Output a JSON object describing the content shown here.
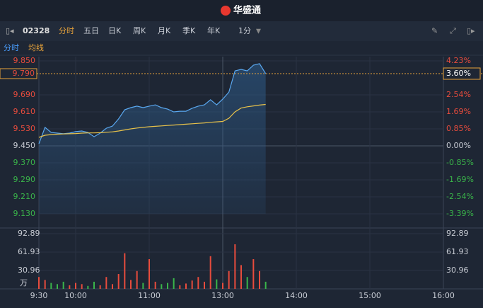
{
  "header": {
    "logo": "华盛通"
  },
  "toolbar": {
    "code": "02328",
    "tabs": [
      "分时",
      "五日",
      "日K",
      "周K",
      "月K",
      "季K",
      "年K"
    ],
    "selected": "分时",
    "period": "1分"
  },
  "subtabs": [
    "分时",
    "均线"
  ],
  "chart_data": {
    "type": "line",
    "x": [
      "9:30",
      "9:35",
      "9:40",
      "9:45",
      "9:50",
      "9:55",
      "10:00",
      "10:05",
      "10:10",
      "10:15",
      "10:20",
      "10:25",
      "10:30",
      "10:35",
      "10:40",
      "10:45",
      "10:50",
      "10:55",
      "11:00",
      "11:05",
      "11:10",
      "11:15",
      "11:20",
      "11:25",
      "11:30",
      "11:35",
      "11:40",
      "11:45",
      "11:50",
      "11:55",
      "12:00",
      "13:05",
      "13:10",
      "13:15",
      "13:20",
      "13:25",
      "13:30",
      "13:35"
    ],
    "series": [
      {
        "color": "#5aa8f0",
        "values": [
          9.46,
          9.537,
          9.513,
          9.51,
          9.507,
          9.51,
          9.517,
          9.52,
          9.513,
          9.493,
          9.51,
          9.533,
          9.543,
          9.577,
          9.62,
          9.63,
          9.637,
          9.63,
          9.637,
          9.643,
          9.63,
          9.623,
          9.61,
          9.613,
          9.613,
          9.627,
          9.637,
          9.643,
          9.667,
          9.643,
          9.67,
          9.703,
          9.803,
          9.81,
          9.803,
          9.83,
          9.837,
          9.79
        ]
      },
      {
        "color": "#e8c24a",
        "values": [
          9.49,
          9.5,
          9.503,
          9.505,
          9.506,
          9.507,
          9.508,
          9.51,
          9.511,
          9.511,
          9.512,
          9.514,
          9.516,
          9.52,
          9.525,
          9.53,
          9.534,
          9.537,
          9.54,
          9.542,
          9.544,
          9.546,
          9.548,
          9.55,
          9.552,
          9.554,
          9.556,
          9.558,
          9.561,
          9.563,
          9.565,
          9.58,
          9.61,
          9.628,
          9.634,
          9.638,
          9.642,
          9.645
        ]
      }
    ],
    "ylim": [
      9.13,
      9.85
    ],
    "yticks": [
      {
        "value": 9.85,
        "label": "9.850"
      },
      {
        "value": 9.69,
        "label": "9.690"
      },
      {
        "value": 9.61,
        "label": "9.610"
      },
      {
        "value": 9.53,
        "label": "9.530"
      },
      {
        "value": 9.45,
        "label": "9.450"
      },
      {
        "value": 9.37,
        "label": "9.370"
      },
      {
        "value": 9.29,
        "label": "9.290"
      },
      {
        "value": 9.21,
        "label": "9.210"
      },
      {
        "value": 9.13,
        "label": "9.130"
      }
    ],
    "y2lim": [
      -3.39,
      4.23
    ],
    "y2ticks": [
      {
        "value": 4.23,
        "label": "4.23%"
      },
      {
        "value": 2.54,
        "label": "2.54%"
      },
      {
        "value": 1.69,
        "label": "1.69%"
      },
      {
        "value": 0.85,
        "label": "0.85%"
      },
      {
        "value": 0,
        "label": "0.00%"
      },
      {
        "value": -0.85,
        "label": "-0.85%"
      },
      {
        "value": -1.69,
        "label": "-1.69%"
      },
      {
        "value": -2.54,
        "label": "-2.54%"
      },
      {
        "value": -3.39,
        "label": "-3.39%"
      }
    ],
    "prev_close": 9.45,
    "last_price": {
      "value": 9.79,
      "label": "9.790"
    },
    "last_change": {
      "value": 3.6,
      "label": "3.60%"
    },
    "xticks": [
      "9:30",
      "10:00",
      "11:00",
      "13:00",
      "14:00",
      "15:00",
      "16:00"
    ],
    "volume": {
      "values": [
        20,
        15,
        10,
        8,
        12,
        6,
        10,
        8,
        5,
        12,
        6,
        20,
        8,
        25,
        60,
        15,
        30,
        10,
        50,
        12,
        8,
        10,
        18,
        6,
        9,
        14,
        20,
        12,
        55,
        16,
        10,
        30,
        75,
        40,
        20,
        50,
        30,
        12
      ],
      "ylim": [
        0,
        92.89
      ],
      "yticks": [
        92.89,
        61.93,
        30.96
      ],
      "unit": "万",
      "up_color": "#e84c3d",
      "down_color": "#3ab54a"
    },
    "grid": true
  }
}
